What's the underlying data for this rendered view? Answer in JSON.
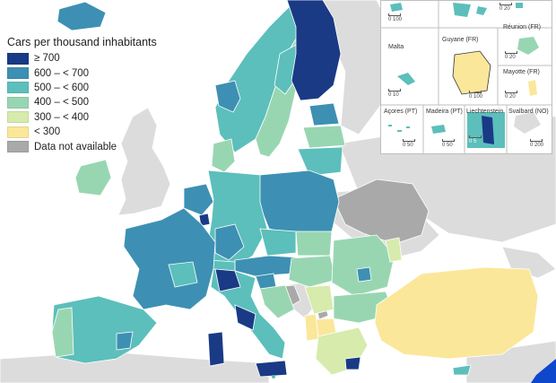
{
  "legend": {
    "title": "Cars per thousand inhabitants",
    "items": [
      {
        "label": "≥ 700",
        "color": "#1a3a86"
      },
      {
        "label": "600 – < 700",
        "color": "#3d90b3"
      },
      {
        "label": "500 – < 600",
        "color": "#5cbfbb"
      },
      {
        "label": "400 – < 500",
        "color": "#98d6b2"
      },
      {
        "label": "300 – < 400",
        "color": "#d7ebac"
      },
      {
        "label": "< 300",
        "color": "#fbe79a"
      },
      {
        "label": "Data not available",
        "color": "#a9a9a9"
      }
    ]
  },
  "insets": {
    "malta": "Malta",
    "guyane": "Guyane (FR)",
    "reunion": "Réunion (FR)",
    "mayotte": "Mayotte (FR)",
    "acores": "Açores (PT)",
    "madeira": "Madeira (PT)",
    "liechtenstein": "Liechtenstein",
    "svalbard": "Svalbard (NO)",
    "scales": {
      "s100_a": "0  100",
      "s20_a": "0  20",
      "s10_malta": "0  10",
      "s100_guyane": "0  100",
      "s20_reunion": "0  20",
      "s20_mayotte": "0  20",
      "s50_acores": "0  50",
      "s50_madeira": "0  50",
      "s200_svalbard": "0  200",
      "s5_liech": "0  5"
    }
  },
  "colors": {
    "sea": "#ffffff",
    "non_eu": "#dcdcdc",
    "na": "#a9a9a9",
    "border": "#ffffff"
  }
}
